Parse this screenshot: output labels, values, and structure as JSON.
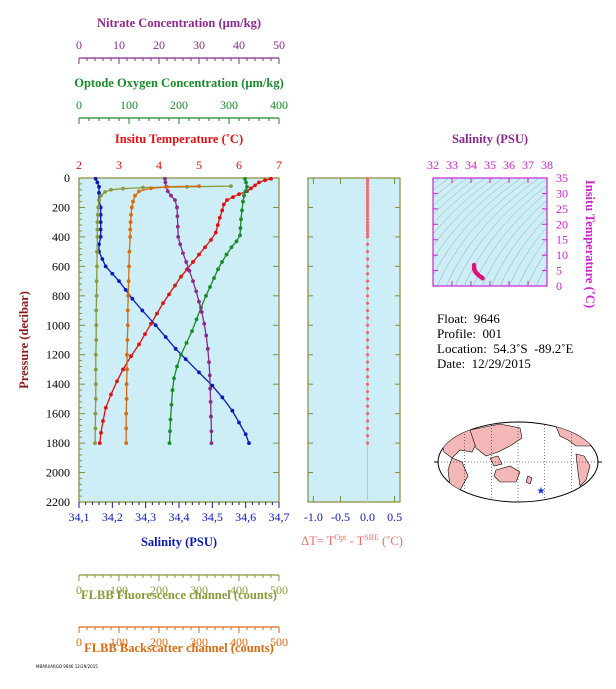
{
  "colors": {
    "panel_bg": "#cdeef6",
    "nitrate": "#8b2a8b",
    "oxygen": "#1a8a2a",
    "temperature": "#e01010",
    "salinity": "#0a1ab8",
    "fluorescence": "#8a9a3a",
    "backscatter": "#d96a10",
    "delta_t": "#f06a6a",
    "ts_axis": "#cc22cc",
    "map_land": "#f4b7b7",
    "map_ocean": "#ffffff",
    "float_marker": "#1a3ad8"
  },
  "info": {
    "float": "Float:  9646",
    "profile": "Profile:  001",
    "location": "Location:  54.3˚S  -89.2˚E",
    "date": "Date:  12/29/2015"
  },
  "tiny_label": "MBARI/ARGO 9646 12/29/2015",
  "chart_data": [
    {
      "type": "line",
      "name": "profile-panel",
      "y_axis": {
        "label": "Pressure (decibar)",
        "ticks": [
          "0",
          "200",
          "400",
          "600",
          "800",
          "1000",
          "1200",
          "1400",
          "1600",
          "1800",
          "2000",
          "2200"
        ],
        "ylim": [
          0,
          2200
        ],
        "inverted": true
      },
      "x_axes": [
        {
          "key": "nitrate",
          "label": "Nitrate Concentration (μm/kg)",
          "ticks": [
            "0",
            "10",
            "20",
            "30",
            "40",
            "50"
          ],
          "xlim": [
            0,
            50
          ],
          "position": "top"
        },
        {
          "key": "oxygen",
          "label": "Optode Oxygen Concentration (μm/kg)",
          "ticks": [
            "0",
            "100",
            "200",
            "300",
            "400"
          ],
          "xlim": [
            0,
            400
          ],
          "position": "top"
        },
        {
          "key": "temperature",
          "label": "Insitu Temperature (˚C)",
          "ticks": [
            "2",
            "3",
            "4",
            "5",
            "6",
            "7"
          ],
          "xlim": [
            2,
            7
          ],
          "position": "top"
        },
        {
          "key": "salinity",
          "label": "Salinity (PSU)",
          "ticks": [
            "34,1",
            "34,2",
            "34,3",
            "34,4",
            "34,5",
            "34,6",
            "34,7"
          ],
          "xlim": [
            34.1,
            34.7
          ],
          "position": "bottom"
        },
        {
          "key": "fluorescence",
          "label": "FLBB Fluorescence channel (counts)",
          "ticks": [
            "0",
            "100",
            "200",
            "300",
            "400",
            "500"
          ],
          "xlim": [
            0,
            500
          ],
          "position": "bottom"
        },
        {
          "key": "backscatter",
          "label": "FLBB Backscatter channel (counts)",
          "ticks": [
            "0",
            "100",
            "200",
            "300",
            "400",
            "500"
          ],
          "xlim": [
            0,
            500
          ],
          "position": "bottom"
        }
      ],
      "series": [
        {
          "key": "temperature",
          "points": [
            [
              6.8,
              5
            ],
            [
              6.65,
              15
            ],
            [
              6.5,
              30
            ],
            [
              6.4,
              50
            ],
            [
              6.3,
              70
            ],
            [
              6.2,
              90
            ],
            [
              6.0,
              110
            ],
            [
              5.85,
              130
            ],
            [
              5.7,
              150
            ],
            [
              5.62,
              180
            ],
            [
              5.58,
              220
            ],
            [
              5.52,
              270
            ],
            [
              5.47,
              320
            ],
            [
              5.42,
              370
            ],
            [
              5.3,
              420
            ],
            [
              5.15,
              470
            ],
            [
              5.0,
              520
            ],
            [
              4.85,
              570
            ],
            [
              4.7,
              620
            ],
            [
              4.55,
              670
            ],
            [
              4.4,
              730
            ],
            [
              4.25,
              790
            ],
            [
              4.1,
              850
            ],
            [
              3.95,
              920
            ],
            [
              3.8,
              990
            ],
            [
              3.65,
              1060
            ],
            [
              3.5,
              1130
            ],
            [
              3.3,
              1210
            ],
            [
              3.1,
              1300
            ],
            [
              2.95,
              1380
            ],
            [
              2.8,
              1470
            ],
            [
              2.67,
              1560
            ],
            [
              2.6,
              1650
            ],
            [
              2.55,
              1730
            ],
            [
              2.52,
              1800
            ]
          ]
        },
        {
          "key": "salinity",
          "points": [
            [
              34.15,
              5
            ],
            [
              34.155,
              30
            ],
            [
              34.16,
              60
            ],
            [
              34.16,
              100
            ],
            [
              34.16,
              150
            ],
            [
              34.165,
              200
            ],
            [
              34.165,
              250
            ],
            [
              34.165,
              300
            ],
            [
              34.165,
              350
            ],
            [
              34.165,
              400
            ],
            [
              34.16,
              450
            ],
            [
              34.16,
              500
            ],
            [
              34.17,
              550
            ],
            [
              34.18,
              600
            ],
            [
              34.2,
              650
            ],
            [
              34.22,
              700
            ],
            [
              34.24,
              760
            ],
            [
              34.26,
              820
            ],
            [
              34.29,
              900
            ],
            [
              34.33,
              1000
            ],
            [
              34.36,
              1080
            ],
            [
              34.39,
              1160
            ],
            [
              34.42,
              1230
            ],
            [
              34.46,
              1320
            ],
            [
              34.5,
              1410
            ],
            [
              34.53,
              1490
            ],
            [
              34.56,
              1580
            ],
            [
              34.58,
              1660
            ],
            [
              34.6,
              1740
            ],
            [
              34.61,
              1800
            ]
          ]
        },
        {
          "key": "oxygen",
          "points": [
            [
              332,
              5
            ],
            [
              334,
              30
            ],
            [
              336,
              60
            ],
            [
              333,
              90
            ],
            [
              330,
              120
            ],
            [
              328,
              160
            ],
            [
              326,
              220
            ],
            [
              324,
              280
            ],
            [
              323,
              340
            ],
            [
              322,
              390
            ],
            [
              315,
              430
            ],
            [
              305,
              470
            ],
            [
              295,
              520
            ],
            [
              286,
              570
            ],
            [
              278,
              620
            ],
            [
              270,
              680
            ],
            [
              262,
              740
            ],
            [
              254,
              800
            ],
            [
              244,
              880
            ],
            [
              235,
              960
            ],
            [
              226,
              1040
            ],
            [
              215,
              1120
            ],
            [
              204,
              1200
            ],
            [
              196,
              1280
            ],
            [
              190,
              1360
            ],
            [
              187,
              1440
            ],
            [
              185,
              1540
            ],
            [
              183,
              1640
            ],
            [
              182,
              1720
            ],
            [
              181,
              1800
            ]
          ]
        },
        {
          "key": "nitrate",
          "points": [
            [
              21.5,
              5
            ],
            [
              21.6,
              30
            ],
            [
              21.8,
              60
            ],
            [
              22.2,
              90
            ],
            [
              23.0,
              120
            ],
            [
              24.0,
              150
            ],
            [
              24.5,
              200
            ],
            [
              24.6,
              260
            ],
            [
              24.7,
              330
            ],
            [
              24.8,
              400
            ],
            [
              25.3,
              450
            ],
            [
              26.0,
              510
            ],
            [
              26.8,
              570
            ],
            [
              27.6,
              630
            ],
            [
              28.5,
              700
            ],
            [
              29.3,
              770
            ],
            [
              30.0,
              840
            ],
            [
              30.7,
              910
            ],
            [
              31.3,
              990
            ],
            [
              31.8,
              1070
            ],
            [
              32.2,
              1160
            ],
            [
              32.5,
              1250
            ],
            [
              32.7,
              1340
            ],
            [
              32.8,
              1430
            ],
            [
              32.9,
              1520
            ],
            [
              33.0,
              1620
            ],
            [
              33.1,
              1720
            ],
            [
              33.1,
              1800
            ]
          ]
        },
        {
          "key": "fluorescence",
          "points": [
            [
              380,
              55
            ],
            [
              270,
              60
            ],
            [
              160,
              65
            ],
            [
              110,
              72
            ],
            [
              80,
              80
            ],
            [
              65,
              95
            ],
            [
              55,
              120
            ],
            [
              50,
              150
            ],
            [
              48,
              200
            ],
            [
              47,
              250
            ],
            [
              46,
              300
            ],
            [
              46,
              350
            ],
            [
              46,
              400
            ],
            [
              45,
              500
            ],
            [
              45,
              600
            ],
            [
              44,
              700
            ],
            [
              44,
              800
            ],
            [
              43,
              900
            ],
            [
              43,
              1000
            ],
            [
              43,
              1100
            ],
            [
              42,
              1200
            ],
            [
              42,
              1300
            ],
            [
              42,
              1400
            ],
            [
              42,
              1500
            ],
            [
              41,
              1600
            ],
            [
              41,
              1700
            ],
            [
              40,
              1800
            ]
          ]
        },
        {
          "key": "backscatter",
          "points": [
            [
              300,
              55
            ],
            [
              220,
              60
            ],
            [
              180,
              70
            ],
            [
              150,
              90
            ],
            [
              140,
              120
            ],
            [
              135,
              160
            ],
            [
              132,
              200
            ],
            [
              130,
              250
            ],
            [
              129,
              300
            ],
            [
              128,
              350
            ],
            [
              128,
              400
            ],
            [
              126,
              500
            ],
            [
              125,
              600
            ],
            [
              124,
              700
            ],
            [
              123,
              800
            ],
            [
              122,
              900
            ],
            [
              122,
              1000
            ],
            [
              121,
              1100
            ],
            [
              120,
              1200
            ],
            [
              120,
              1300
            ],
            [
              119,
              1400
            ],
            [
              119,
              1500
            ],
            [
              118,
              1600
            ],
            [
              118,
              1700
            ],
            [
              118,
              1800
            ]
          ]
        }
      ]
    },
    {
      "type": "scatter",
      "name": "delta-t-panel",
      "xlabel": "ΔT= T",
      "xlabel_sup1": "Opt",
      "xlabel_mid": " - T",
      "xlabel_sup2": "SBE",
      "xlabel_unit": " (˚C)",
      "x_ticks": [
        "-1.0",
        "-0.5",
        "0.0",
        "0.5"
      ],
      "xlim": [
        -1.1,
        0.6
      ],
      "ylim": [
        0,
        2200
      ],
      "points": [
        [
          0,
          5
        ],
        [
          0,
          20
        ],
        [
          0,
          40
        ],
        [
          0,
          60
        ],
        [
          0,
          80
        ],
        [
          0,
          100
        ],
        [
          0,
          120
        ],
        [
          0,
          140
        ],
        [
          0,
          160
        ],
        [
          0,
          180
        ],
        [
          0,
          200
        ],
        [
          0,
          220
        ],
        [
          0,
          240
        ],
        [
          0,
          260
        ],
        [
          0,
          280
        ],
        [
          0,
          300
        ],
        [
          0,
          320
        ],
        [
          0,
          340
        ],
        [
          0,
          360
        ],
        [
          0,
          380
        ],
        [
          0,
          400
        ],
        [
          0,
          450
        ],
        [
          0,
          500
        ],
        [
          0,
          550
        ],
        [
          0,
          600
        ],
        [
          0,
          650
        ],
        [
          0,
          700
        ],
        [
          0,
          750
        ],
        [
          0,
          800
        ],
        [
          0,
          850
        ],
        [
          0,
          900
        ],
        [
          0,
          950
        ],
        [
          0,
          1000
        ],
        [
          0,
          1050
        ],
        [
          0,
          1100
        ],
        [
          0,
          1150
        ],
        [
          0,
          1200
        ],
        [
          0,
          1250
        ],
        [
          0,
          1300
        ],
        [
          0,
          1350
        ],
        [
          0,
          1400
        ],
        [
          0,
          1450
        ],
        [
          0,
          1500
        ],
        [
          0,
          1550
        ],
        [
          0,
          1600
        ],
        [
          0,
          1650
        ],
        [
          0,
          1700
        ],
        [
          0,
          1750
        ],
        [
          0,
          1800
        ]
      ]
    },
    {
      "type": "scatter",
      "name": "ts-panel",
      "title": "Salinity (PSU)",
      "x_ticks": [
        "32",
        "33",
        "34",
        "35",
        "36",
        "37",
        "38"
      ],
      "xlim": [
        32,
        38
      ],
      "ylabel": "Insitu Temperature (˚C)",
      "y_ticks": [
        "0",
        "5",
        "10",
        "15",
        "20",
        "25",
        "30",
        "35"
      ],
      "ylim": [
        0,
        35
      ],
      "points": [
        [
          34.16,
          6.8
        ],
        [
          34.16,
          6.5
        ],
        [
          34.17,
          6.0
        ],
        [
          34.17,
          5.7
        ],
        [
          34.17,
          5.5
        ],
        [
          34.18,
          5.3
        ],
        [
          34.2,
          5.0
        ],
        [
          34.22,
          4.7
        ],
        [
          34.26,
          4.4
        ],
        [
          34.3,
          4.1
        ],
        [
          34.35,
          3.8
        ],
        [
          34.42,
          3.4
        ],
        [
          34.5,
          3.0
        ],
        [
          34.55,
          2.8
        ],
        [
          34.6,
          2.6
        ],
        [
          34.61,
          2.5
        ]
      ]
    }
  ]
}
